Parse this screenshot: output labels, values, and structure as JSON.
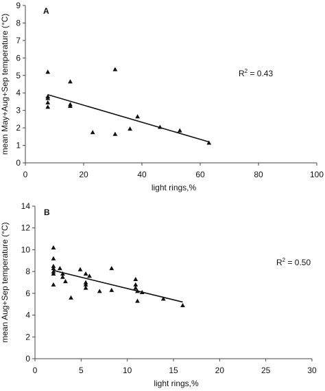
{
  "chart_data": [
    {
      "type": "scatter",
      "panel_label": "A",
      "xlabel": "light rings,%",
      "ylabel": "mean May+Aug+Sep temperature (°C)",
      "xlim": [
        0,
        100
      ],
      "ylim": [
        0,
        9
      ],
      "x_ticks": [
        "0",
        "20",
        "40",
        "60",
        "80",
        "100"
      ],
      "y_ticks": [
        "0",
        "1",
        "2",
        "3",
        "4",
        "5",
        "6",
        "7",
        "8",
        "9"
      ],
      "marker": "triangle",
      "points": [
        {
          "x": 7.7,
          "y": 5.2
        },
        {
          "x": 7.7,
          "y": 3.8
        },
        {
          "x": 7.7,
          "y": 3.7
        },
        {
          "x": 7.7,
          "y": 3.45
        },
        {
          "x": 7.7,
          "y": 3.2
        },
        {
          "x": 15.4,
          "y": 4.65
        },
        {
          "x": 15.4,
          "y": 3.35
        },
        {
          "x": 15.4,
          "y": 3.25
        },
        {
          "x": 23.1,
          "y": 1.75
        },
        {
          "x": 30.8,
          "y": 5.35
        },
        {
          "x": 30.8,
          "y": 1.65
        },
        {
          "x": 35.9,
          "y": 1.95
        },
        {
          "x": 38.5,
          "y": 2.65
        },
        {
          "x": 46.2,
          "y": 2.05
        },
        {
          "x": 53.0,
          "y": 1.85
        },
        {
          "x": 63.0,
          "y": 1.15
        }
      ],
      "trendline": {
        "x": [
          7.7,
          63.0
        ],
        "y": [
          3.9,
          1.2
        ]
      },
      "annotation": {
        "text": "R² = 0.43",
        "base": "R",
        "sup": "2",
        "rest": " = 0.43"
      },
      "grid": false,
      "legend": "none"
    },
    {
      "type": "scatter",
      "panel_label": "B",
      "xlabel": "light rings,%",
      "ylabel": "mean Aug+Sep temperature (°C)",
      "xlim": [
        0,
        30
      ],
      "ylim": [
        0,
        14
      ],
      "x_ticks": [
        "0",
        "5",
        "10",
        "15",
        "20",
        "25",
        "30"
      ],
      "y_ticks": [
        "0",
        "2",
        "4",
        "6",
        "8",
        "10",
        "12",
        "14"
      ],
      "marker": "triangle",
      "points": [
        {
          "x": 2.0,
          "y": 10.2
        },
        {
          "x": 2.0,
          "y": 9.2
        },
        {
          "x": 2.0,
          "y": 8.5
        },
        {
          "x": 2.0,
          "y": 8.3
        },
        {
          "x": 2.0,
          "y": 8.0
        },
        {
          "x": 2.0,
          "y": 7.8
        },
        {
          "x": 2.0,
          "y": 6.8
        },
        {
          "x": 2.7,
          "y": 8.3
        },
        {
          "x": 3.0,
          "y": 7.8
        },
        {
          "x": 3.0,
          "y": 7.5
        },
        {
          "x": 3.3,
          "y": 7.1
        },
        {
          "x": 3.9,
          "y": 5.6
        },
        {
          "x": 4.9,
          "y": 8.2
        },
        {
          "x": 5.5,
          "y": 7.8
        },
        {
          "x": 5.5,
          "y": 7.0
        },
        {
          "x": 5.5,
          "y": 6.8
        },
        {
          "x": 5.5,
          "y": 6.5
        },
        {
          "x": 5.9,
          "y": 7.6
        },
        {
          "x": 7.0,
          "y": 6.2
        },
        {
          "x": 8.3,
          "y": 8.3
        },
        {
          "x": 8.3,
          "y": 6.3
        },
        {
          "x": 10.9,
          "y": 7.3
        },
        {
          "x": 10.9,
          "y": 6.8
        },
        {
          "x": 10.9,
          "y": 6.5
        },
        {
          "x": 11.1,
          "y": 6.2
        },
        {
          "x": 11.1,
          "y": 5.3
        },
        {
          "x": 11.6,
          "y": 6.1
        },
        {
          "x": 13.9,
          "y": 5.5
        },
        {
          "x": 16.0,
          "y": 4.9
        }
      ],
      "trendline": {
        "x": [
          2.0,
          16.0
        ],
        "y": [
          8.1,
          5.2
        ]
      },
      "annotation": {
        "text": "R² = 0.50",
        "base": "R",
        "sup": "2",
        "rest": " = 0.50"
      },
      "grid": false,
      "legend": "none"
    }
  ]
}
